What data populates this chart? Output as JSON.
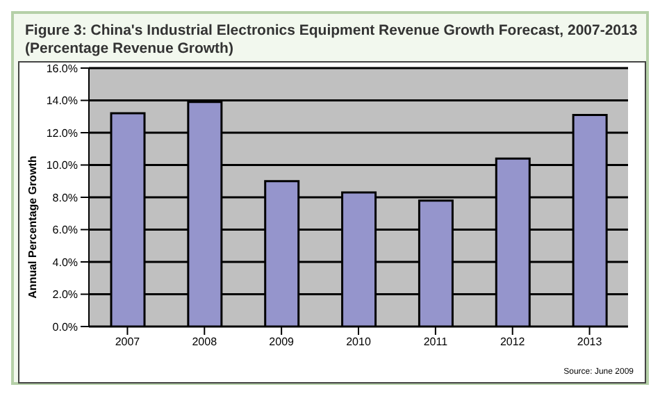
{
  "chart_data": {
    "type": "bar",
    "title": "Figure 3: China's Industrial Electronics Equipment Revenue Growth Forecast, 2007-2013",
    "subtitle": "(Percentage Revenue Growth)",
    "ylabel": "Annual Percentage Growth",
    "categories": [
      "2007",
      "2008",
      "2009",
      "2010",
      "2011",
      "2012",
      "2013"
    ],
    "values": [
      13.2,
      13.9,
      9.0,
      8.3,
      7.8,
      10.4,
      13.1
    ],
    "color": "#9595cc",
    "ylim": [
      0,
      16
    ],
    "yticks": [
      {
        "value": 0,
        "label": "0.0%"
      },
      {
        "value": 2,
        "label": "2.0%"
      },
      {
        "value": 4,
        "label": "4.0%"
      },
      {
        "value": 6,
        "label": "6.0%"
      },
      {
        "value": 8,
        "label": "8.0%"
      },
      {
        "value": 10,
        "label": "10.0%"
      },
      {
        "value": 12,
        "label": "12.0%"
      },
      {
        "value": 14,
        "label": "14.0%"
      },
      {
        "value": 16,
        "label": "16.0%"
      }
    ],
    "grid": "y",
    "legend": false,
    "annotations": [
      "Source: June 2009"
    ]
  }
}
